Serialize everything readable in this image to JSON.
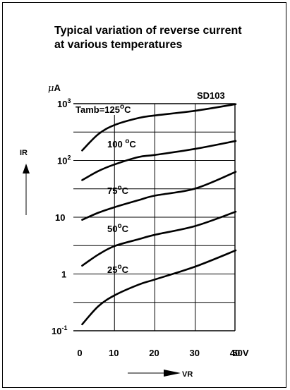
{
  "title_line1": "Typical variation of reverse current",
  "title_line2": "at various temperatures",
  "part_number": "SD103",
  "y_unit_mu": "μ",
  "y_unit_rest": "A",
  "y_axis_label": "IR",
  "x_axis_label": "VR",
  "colors": {
    "line": "#000000",
    "grid": "#000000",
    "background": "#ffffff"
  },
  "chart_data": {
    "type": "line",
    "title": "Typical variation of reverse current at various temperatures",
    "xlabel": "VR",
    "ylabel": "IR",
    "yscale": "log",
    "xlim": [
      0,
      50
    ],
    "ylim": [
      0.1,
      1000
    ],
    "grid": true,
    "x_ticks": [
      "0",
      "10",
      "20",
      "30",
      "40",
      "50V"
    ],
    "y_ticks": [
      {
        "value": 0.1,
        "base": "10",
        "exp": "-1"
      },
      {
        "value": 1,
        "base": "1",
        "exp": ""
      },
      {
        "value": 10,
        "base": "10",
        "exp": ""
      },
      {
        "value": 100,
        "base": "10",
        "exp": "2"
      },
      {
        "value": 1000,
        "base": "10",
        "exp": "3"
      }
    ],
    "series": [
      {
        "name": "Tamb=125°C",
        "label_main": "Tamb=125",
        "label_sup": "o",
        "label_tail": "C",
        "x": [
          2,
          6,
          10,
          16,
          20,
          30,
          40
        ],
        "y": [
          150,
          290,
          420,
          560,
          620,
          750,
          980
        ]
      },
      {
        "name": "100°C",
        "label_main": "100 ",
        "label_sup": "o",
        "label_tail": "C",
        "x": [
          2,
          6,
          10,
          16,
          20,
          30,
          40
        ],
        "y": [
          45,
          65,
          85,
          115,
          125,
          160,
          220
        ]
      },
      {
        "name": "75°C",
        "label_main": "75",
        "label_sup": "o",
        "label_tail": "C",
        "x": [
          2,
          6,
          10,
          16,
          20,
          30,
          40
        ],
        "y": [
          9,
          12,
          15,
          20,
          24,
          32,
          63
        ]
      },
      {
        "name": "50°C",
        "label_main": "50",
        "label_sup": "o",
        "label_tail": "C",
        "x": [
          2,
          6,
          10,
          16,
          20,
          30,
          40
        ],
        "y": [
          1.4,
          2.2,
          3.1,
          4.1,
          4.9,
          7,
          12.5
        ]
      },
      {
        "name": "25°C",
        "label_main": "25",
        "label_sup": "o",
        "label_tail": "C",
        "x": [
          2,
          6,
          10,
          16,
          20,
          30,
          40
        ],
        "y": [
          0.13,
          0.27,
          0.42,
          0.65,
          0.8,
          1.35,
          2.6
        ]
      }
    ]
  }
}
